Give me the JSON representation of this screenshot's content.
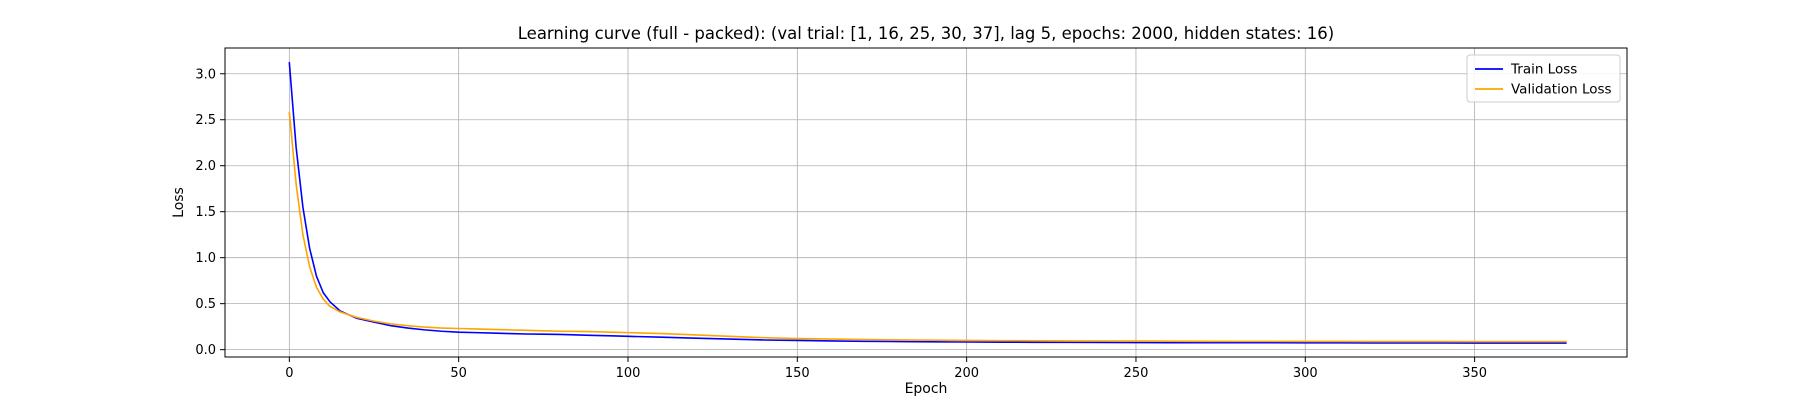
{
  "chart_data": {
    "type": "line",
    "title": "Learning curve (full - packed): (val trial: [1, 16, 25, 30, 37], lag 5, epochs: 2000, hidden states: 16)",
    "xlabel": "Epoch",
    "ylabel": "Loss",
    "xlim": [
      -19,
      395
    ],
    "ylim": [
      -0.08,
      3.28
    ],
    "xticks": [
      0,
      50,
      100,
      150,
      200,
      250,
      300,
      350
    ],
    "yticks": [
      0.0,
      0.5,
      1.0,
      1.5,
      2.0,
      2.5,
      3.0
    ],
    "xtick_labels": [
      "0",
      "50",
      "100",
      "150",
      "200",
      "250",
      "300",
      "350"
    ],
    "ytick_labels": [
      "0.0",
      "0.5",
      "1.0",
      "1.5",
      "2.0",
      "2.5",
      "3.0"
    ],
    "grid": true,
    "legend_position": "top-right",
    "series": [
      {
        "name": "Train Loss",
        "color": "#0000ff",
        "x": [
          0,
          2,
          4,
          6,
          8,
          10,
          12,
          15,
          20,
          25,
          30,
          35,
          40,
          45,
          50,
          55,
          60,
          65,
          70,
          75,
          80,
          85,
          90,
          95,
          100,
          110,
          120,
          130,
          140,
          150,
          160,
          170,
          180,
          190,
          200,
          210,
          220,
          230,
          240,
          250,
          260,
          270,
          280,
          290,
          300,
          310,
          320,
          330,
          340,
          350,
          360,
          370,
          377
        ],
        "y": [
          3.12,
          2.2,
          1.55,
          1.1,
          0.8,
          0.62,
          0.52,
          0.42,
          0.34,
          0.3,
          0.26,
          0.235,
          0.215,
          0.2,
          0.19,
          0.185,
          0.18,
          0.175,
          0.17,
          0.168,
          0.165,
          0.16,
          0.155,
          0.15,
          0.145,
          0.135,
          0.125,
          0.115,
          0.105,
          0.1,
          0.095,
          0.09,
          0.088,
          0.085,
          0.083,
          0.081,
          0.08,
          0.079,
          0.078,
          0.077,
          0.076,
          0.076,
          0.075,
          0.075,
          0.074,
          0.074,
          0.073,
          0.073,
          0.073,
          0.072,
          0.072,
          0.072,
          0.072
        ]
      },
      {
        "name": "Validation Loss",
        "color": "#ffa500",
        "x": [
          0,
          2,
          4,
          6,
          8,
          10,
          12,
          15,
          20,
          25,
          30,
          35,
          40,
          45,
          50,
          55,
          60,
          65,
          70,
          75,
          80,
          85,
          90,
          95,
          100,
          110,
          120,
          130,
          140,
          150,
          160,
          170,
          180,
          190,
          200,
          210,
          220,
          230,
          240,
          250,
          260,
          270,
          280,
          290,
          300,
          310,
          320,
          330,
          340,
          350,
          360,
          370,
          377
        ],
        "y": [
          2.58,
          1.8,
          1.25,
          0.9,
          0.68,
          0.55,
          0.47,
          0.41,
          0.35,
          0.31,
          0.28,
          0.26,
          0.245,
          0.235,
          0.23,
          0.225,
          0.22,
          0.215,
          0.21,
          0.205,
          0.2,
          0.198,
          0.195,
          0.19,
          0.185,
          0.175,
          0.16,
          0.145,
          0.13,
          0.12,
          0.115,
          0.11,
          0.106,
          0.103,
          0.1,
          0.098,
          0.096,
          0.095,
          0.094,
          0.093,
          0.092,
          0.091,
          0.09,
          0.09,
          0.089,
          0.089,
          0.088,
          0.088,
          0.088,
          0.087,
          0.087,
          0.087,
          0.087
        ]
      }
    ]
  }
}
